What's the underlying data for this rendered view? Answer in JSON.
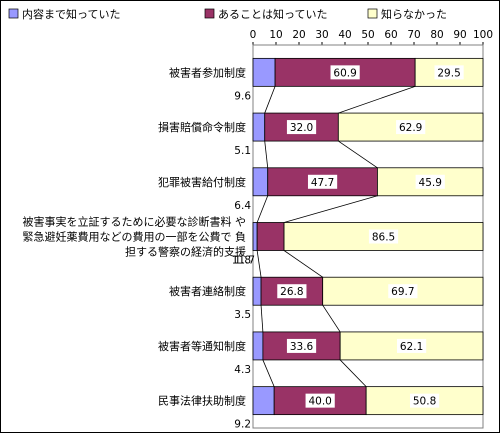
{
  "chart_data": {
    "type": "bar",
    "orientation": "horizontal",
    "stacked": true,
    "xlim": [
      0,
      100
    ],
    "xticks": [
      "0",
      "10",
      "20",
      "30",
      "40",
      "50",
      "60",
      "70",
      "80",
      "90",
      "100"
    ],
    "legend_position": "top",
    "grid": false,
    "categories": [
      [
        "被害者参加制度"
      ],
      [
        "損害賠償命令制度"
      ],
      [
        "犯罪被害給付制度"
      ],
      [
        "被害事実を立証するために必要な診断書料 や",
        "緊急避妊薬費用などの費用の一部を公費で 負",
        "担する警察の経済的支援"
      ],
      [
        "被害者連絡制度"
      ],
      [
        "被害者等通知制度"
      ],
      [
        "民事法律扶助制度"
      ]
    ],
    "series": [
      {
        "name": "内容まで知っていた",
        "color": "#9999ff",
        "values": [
          9.6,
          5.1,
          6.4,
          1.8,
          3.5,
          4.3,
          9.2
        ],
        "labels": [
          "9.6",
          "5.1",
          "6.4",
          "1.8",
          "3.5",
          "4.3",
          "9.2"
        ]
      },
      {
        "name": "あることは知っていた",
        "color": "#993366",
        "values": [
          60.9,
          32.0,
          47.7,
          11.7,
          26.8,
          33.6,
          40.0
        ],
        "labels": [
          "60.9",
          "32.0",
          "47.7",
          "11.7",
          "26.8",
          "33.6",
          "40.0"
        ]
      },
      {
        "name": "知らなかった",
        "color": "#ffffcc",
        "values": [
          29.5,
          62.9,
          45.9,
          86.5,
          69.7,
          62.1,
          50.8
        ],
        "labels": [
          "29.5",
          "62.9",
          "45.9",
          "86.5",
          "69.7",
          "62.1",
          "50.8"
        ]
      }
    ]
  }
}
